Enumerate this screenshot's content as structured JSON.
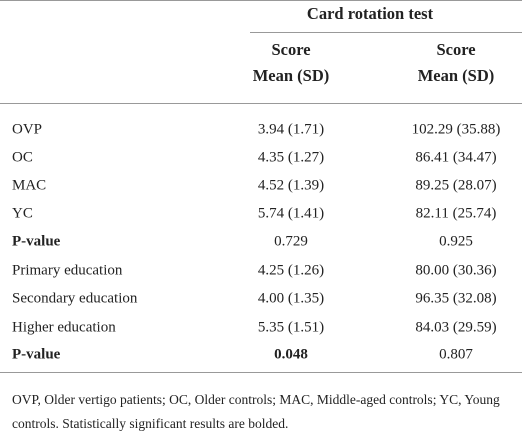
{
  "table": {
    "group_header": "Card rotation test",
    "columns": [
      [
        "Score",
        "Mean (SD)"
      ],
      [
        "Score",
        "Mean (SD)"
      ]
    ],
    "rows": [
      [
        "OVP",
        "3.94 (1.71)",
        "102.29 (35.88)"
      ],
      [
        "OC",
        "4.35 (1.27)",
        "86.41 (34.47)"
      ],
      [
        "MAC",
        "4.52 (1.39)",
        "89.25 (28.07)"
      ],
      [
        "YC",
        "5.74 (1.41)",
        "82.11 (25.74)"
      ],
      [
        "P-value",
        "0.729",
        "0.925"
      ],
      [
        "Primary education",
        "4.25 (1.26)",
        "80.00 (30.36)"
      ],
      [
        "Secondary education",
        "4.00 (1.35)",
        "96.35 (32.08)"
      ],
      [
        "Higher education",
        "5.35 (1.51)",
        "84.03 (29.59)"
      ],
      [
        "P-value",
        "0.048",
        "0.807"
      ]
    ],
    "footnote": [
      "OVP, Older vertigo patients; OC, Older controls; MAC, Middle-aged controls; YC, Young",
      "controls. Statistically significant results are bolded."
    ]
  }
}
